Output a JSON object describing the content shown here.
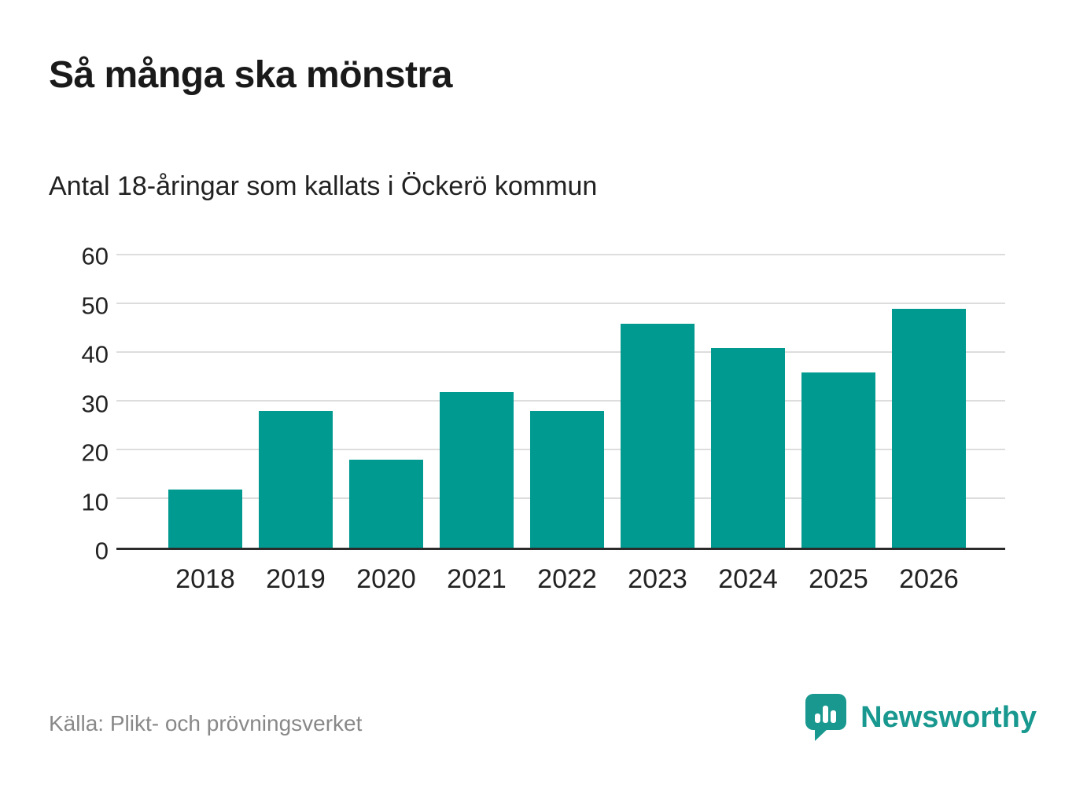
{
  "title": "Så många ska mönstra",
  "subtitle": "Antal 18-åringar som kallats i Öckerö kommun",
  "source": "Källa: Plikt- och prövningsverket",
  "brand": {
    "name": "Newsworthy",
    "color": "#18988f"
  },
  "colors": {
    "bar": "#009a90",
    "axis": "#2b2b2b",
    "grid": "#dddddd",
    "text": "#222222",
    "muted": "#888888"
  },
  "chart_data": {
    "type": "bar",
    "categories": [
      "2018",
      "2019",
      "2020",
      "2021",
      "2022",
      "2023",
      "2024",
      "2025",
      "2026"
    ],
    "values": [
      12,
      28,
      18,
      32,
      28,
      46,
      41,
      36,
      49
    ],
    "title": "Så många ska mönstra",
    "subtitle": "Antal 18-åringar som kallats i Öckerö kommun",
    "xlabel": "",
    "ylabel": "",
    "ylim": [
      0,
      60
    ],
    "ytick_step": 10,
    "yticks": [
      0,
      10,
      20,
      30,
      40,
      50,
      60
    ],
    "grid": true,
    "legend": false,
    "bar_color": "#009a90",
    "source": "Källa: Plikt- och prövningsverket"
  }
}
